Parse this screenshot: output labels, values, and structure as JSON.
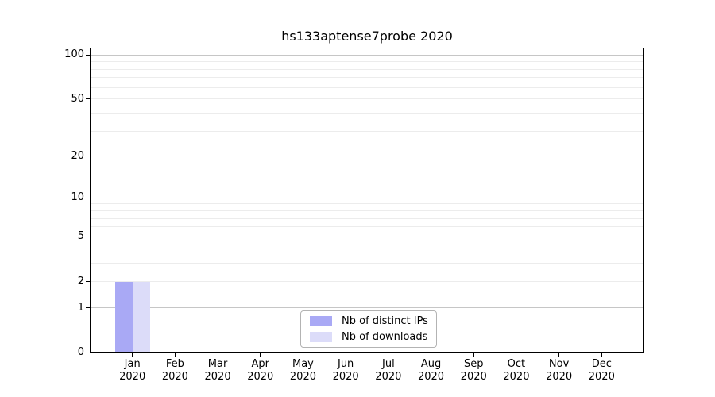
{
  "chart_data": {
    "type": "bar",
    "title": "hs133aptense7probe 2020",
    "categories": [
      "Jan",
      "Feb",
      "Mar",
      "Apr",
      "May",
      "Jun",
      "Jul",
      "Aug",
      "Sep",
      "Oct",
      "Nov",
      "Dec"
    ],
    "category_year": "2020",
    "series": [
      {
        "name": "Nb of distinct IPs",
        "color": "#a9a9f5",
        "values": [
          2,
          0,
          0,
          0,
          0,
          0,
          0,
          0,
          0,
          0,
          0,
          0
        ]
      },
      {
        "name": "Nb of downloads",
        "color": "#dcdcf9",
        "values": [
          2,
          0,
          0,
          0,
          0,
          0,
          0,
          0,
          0,
          0,
          0,
          0
        ]
      }
    ],
    "yscale": "log1p",
    "ylim": [
      0,
      112
    ],
    "major_yticks": [
      0,
      1,
      2,
      5,
      10,
      20,
      50,
      100
    ],
    "decade_gridlines": [
      1,
      10,
      100
    ],
    "minor_gridlines": [
      2,
      3,
      4,
      5,
      6,
      7,
      8,
      9,
      20,
      30,
      40,
      50,
      60,
      70,
      80,
      90
    ],
    "grid": true,
    "legend_position": "lower-center"
  },
  "colors": {
    "background": "#ffffff",
    "spine": "#000000",
    "grid_major": "#c6c6c6",
    "grid_minor": "#ececec",
    "legend_border": "#b3b3b3",
    "text": "#000000"
  }
}
